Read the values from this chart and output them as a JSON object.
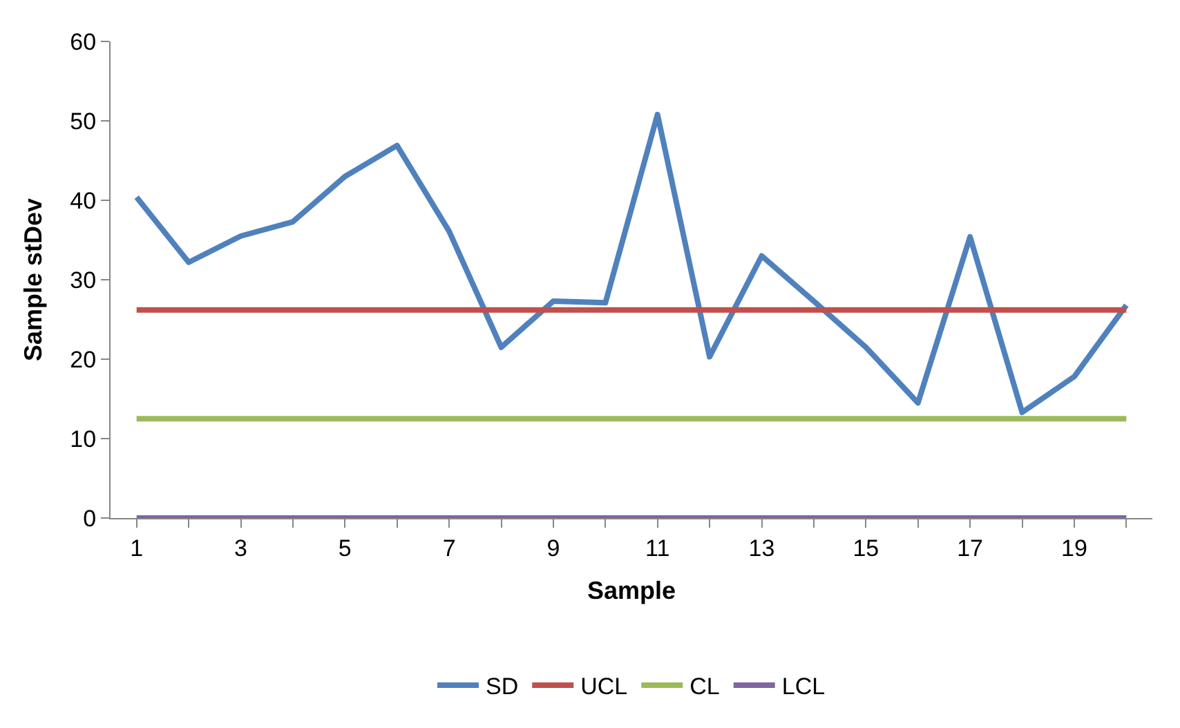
{
  "chart_data": {
    "type": "line",
    "xlabel": "Sample",
    "ylabel": "Sample stDev",
    "x": [
      1,
      2,
      3,
      4,
      5,
      6,
      7,
      8,
      9,
      10,
      11,
      12,
      13,
      14,
      15,
      16,
      17,
      18,
      19,
      20
    ],
    "series": [
      {
        "name": "SD",
        "color": "#4f81bd",
        "values": [
          40.4,
          32.2,
          35.5,
          37.3,
          43,
          46.9,
          36.1,
          21.5,
          27.3,
          27.1,
          50.8,
          20.3,
          33,
          27.3,
          21.5,
          14.5,
          35.4,
          13.3,
          17.8,
          26.8
        ]
      },
      {
        "name": "UCL",
        "color": "#c0504d",
        "values": [
          26.2,
          26.2,
          26.2,
          26.2,
          26.2,
          26.2,
          26.2,
          26.2,
          26.2,
          26.2,
          26.2,
          26.2,
          26.2,
          26.2,
          26.2,
          26.2,
          26.2,
          26.2,
          26.2,
          26.2
        ]
      },
      {
        "name": "CL",
        "color": "#9bbb59",
        "values": [
          12.5,
          12.5,
          12.5,
          12.5,
          12.5,
          12.5,
          12.5,
          12.5,
          12.5,
          12.5,
          12.5,
          12.5,
          12.5,
          12.5,
          12.5,
          12.5,
          12.5,
          12.5,
          12.5,
          12.5
        ]
      },
      {
        "name": "LCL",
        "color": "#8064a2",
        "values": [
          0,
          0,
          0,
          0,
          0,
          0,
          0,
          0,
          0,
          0,
          0,
          0,
          0,
          0,
          0,
          0,
          0,
          0,
          0,
          0
        ]
      }
    ],
    "xlim": [
      0.5,
      20.5
    ],
    "xticks": [
      1,
      {
        "value": 2,
        "label": null
      },
      3,
      {
        "value": 4,
        "label": null
      },
      5,
      {
        "value": 6,
        "label": null
      },
      7,
      {
        "value": 8,
        "label": null
      },
      9,
      {
        "value": 10,
        "label": null
      },
      11,
      {
        "value": 12,
        "label": null
      },
      13,
      {
        "value": 14,
        "label": null
      },
      15,
      {
        "value": 16,
        "label": null
      },
      17,
      {
        "value": 18,
        "label": null
      },
      19,
      {
        "value": 20,
        "label": null
      }
    ],
    "ylim": [
      0,
      60
    ],
    "yticks": [
      0,
      10,
      20,
      30,
      40,
      50,
      60
    ],
    "grid": false,
    "legend": "bottom",
    "marker": "none",
    "line_style": "solid"
  }
}
